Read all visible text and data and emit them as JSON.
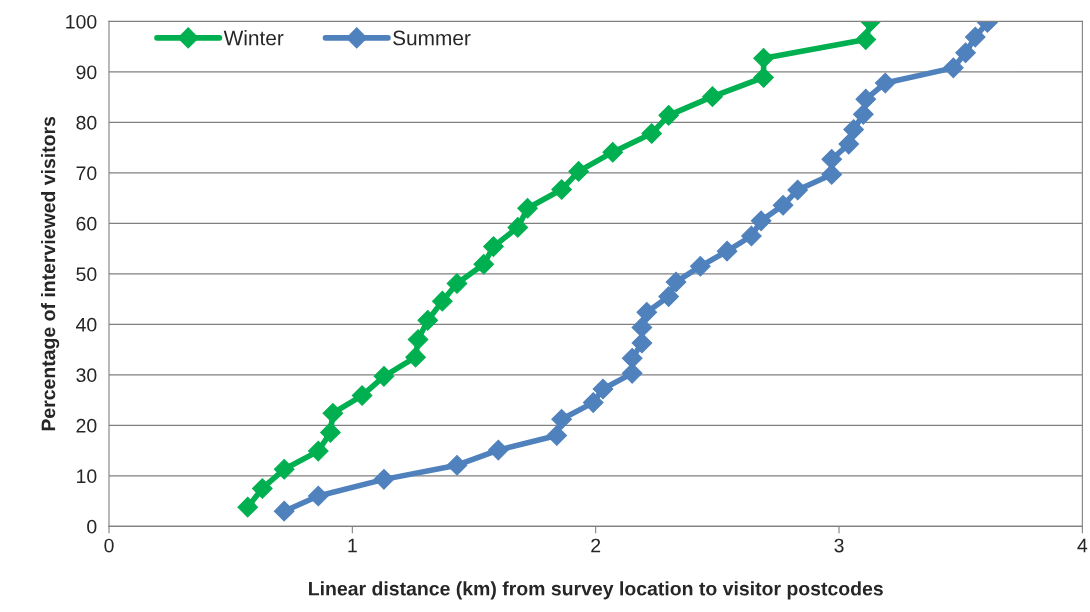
{
  "chart_data": {
    "type": "line",
    "xlabel": "Linear distance (km) from survey location to visitor postcodes",
    "ylabel": "Percentage of interviewed visitors",
    "xlim": [
      0,
      4
    ],
    "xticks": [
      0,
      1,
      2,
      3,
      4
    ],
    "ylim": [
      0,
      100
    ],
    "yticks": [
      0,
      10,
      20,
      30,
      40,
      50,
      60,
      70,
      80,
      90,
      100
    ],
    "grid": "y",
    "legend": "top left",
    "marker": "diamond",
    "line_style": "solid",
    "series": [
      {
        "name": "Winter",
        "color": "#00b050",
        "x": [
          0.57,
          0.63,
          0.72,
          0.86,
          0.91,
          0.92,
          1.04,
          1.13,
          1.26,
          1.27,
          1.31,
          1.37,
          1.43,
          1.54,
          1.58,
          1.68,
          1.72,
          1.86,
          1.93,
          2.07,
          2.23,
          2.3,
          2.48,
          2.69,
          2.69,
          3.11,
          3.13
        ],
        "values": [
          3.8,
          7.5,
          11.3,
          14.9,
          18.6,
          22.4,
          25.9,
          29.7,
          33.5,
          37.0,
          40.8,
          44.6,
          48.1,
          51.9,
          55.4,
          59.2,
          63.0,
          66.7,
          70.3,
          74.1,
          77.8,
          81.4,
          85.1,
          88.9,
          92.7,
          96.4,
          100
        ]
      },
      {
        "name": "Summer",
        "color": "#4f81bd",
        "x": [
          0.72,
          0.86,
          1.13,
          1.43,
          1.6,
          1.84,
          1.86,
          1.99,
          2.03,
          2.15,
          2.15,
          2.19,
          2.19,
          2.21,
          2.3,
          2.33,
          2.43,
          2.54,
          2.64,
          2.68,
          2.77,
          2.83,
          2.97,
          2.97,
          3.04,
          3.06,
          3.1,
          3.11,
          3.19,
          3.47,
          3.52,
          3.56,
          3.61
        ],
        "values": [
          3.0,
          6.0,
          9.3,
          12.1,
          15.1,
          18.0,
          21.2,
          24.5,
          27.2,
          30.3,
          33.3,
          36.3,
          39.4,
          42.4,
          45.5,
          48.4,
          51.5,
          54.5,
          57.5,
          60.5,
          63.6,
          66.6,
          69.7,
          72.7,
          75.7,
          78.6,
          81.6,
          84.6,
          87.8,
          90.8,
          93.8,
          96.9,
          99.8
        ]
      }
    ]
  }
}
